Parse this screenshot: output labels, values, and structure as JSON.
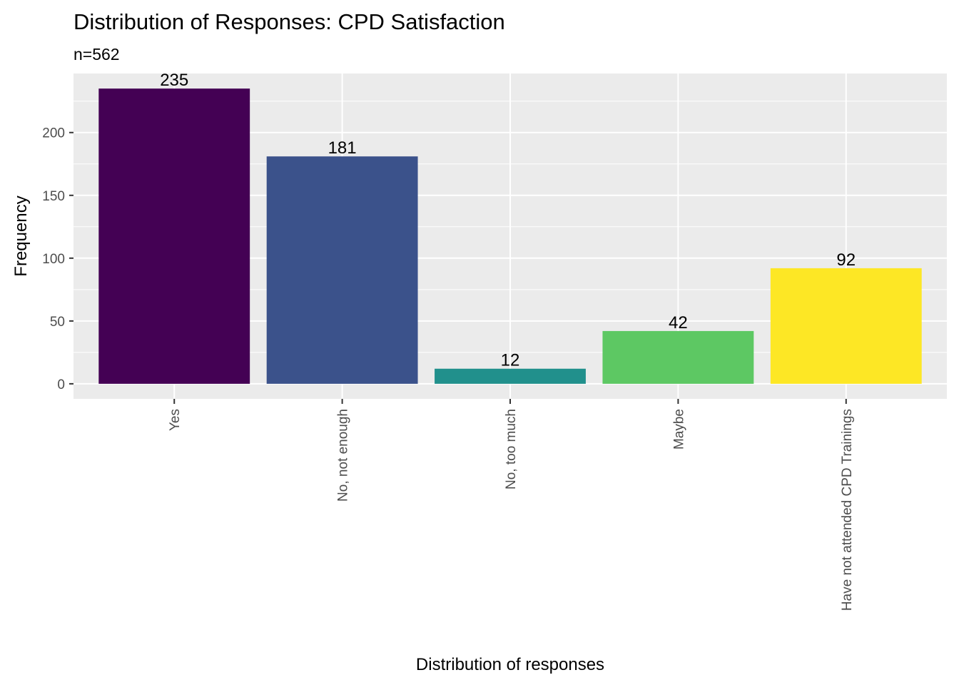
{
  "chart_data": {
    "type": "bar",
    "title": "Distribution of Responses: CPD Satisfaction",
    "subtitle": "n=562",
    "xlabel": "Distribution of responses",
    "ylabel": "Frequency",
    "categories": [
      "Yes",
      "No, not enough",
      "No, too much",
      "Maybe",
      "Have not attended CPD Trainings"
    ],
    "values": [
      235,
      181,
      12,
      42,
      92
    ],
    "data_labels": [
      "235",
      "181",
      "12",
      "42",
      "92"
    ],
    "colors": [
      "#440154",
      "#3B528B",
      "#21908C",
      "#5DC863",
      "#FDE725"
    ],
    "yticks": [
      0,
      50,
      100,
      150,
      200
    ],
    "ytick_labels": [
      "0",
      "50",
      "100",
      "150",
      "200"
    ],
    "ylim": [
      -12,
      247
    ],
    "grid": true,
    "legend": "none"
  }
}
